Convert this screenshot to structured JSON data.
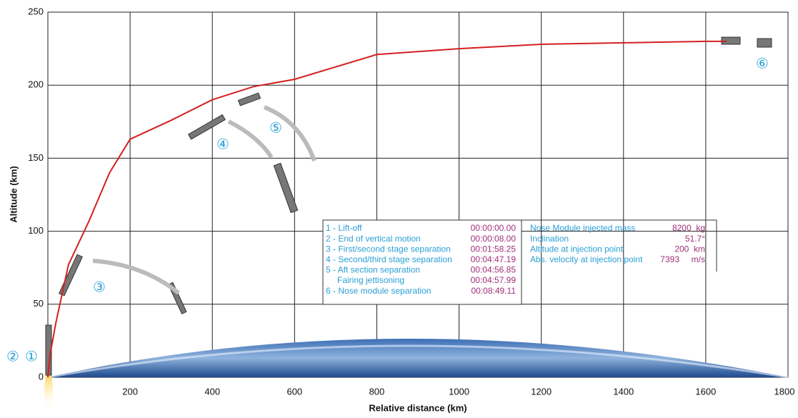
{
  "chart_data": {
    "type": "line",
    "xlabel": "Relative distance (km)",
    "ylabel": "Altitude (km)",
    "x": [
      0,
      5,
      20,
      50,
      100,
      150,
      200,
      300,
      400,
      500,
      600,
      800,
      1000,
      1200,
      1400,
      1600,
      1650
    ],
    "values": [
      0,
      15,
      38,
      77,
      107,
      140,
      163,
      176,
      190,
      199,
      204,
      221,
      225,
      228,
      229,
      230,
      230
    ],
    "color": "#d42020",
    "xlim": [
      0,
      1800
    ],
    "ylim": [
      0,
      250
    ],
    "xticks": [
      200,
      400,
      600,
      800,
      1000,
      1200,
      1400,
      1600,
      1800
    ],
    "yticks": [
      0,
      50,
      100,
      150,
      200,
      250
    ],
    "grid": true,
    "annotations": [
      "②",
      "①",
      "③",
      "④",
      "⑤",
      "⑥"
    ],
    "events": [
      {
        "label": "1 - Lift-off",
        "time": "00:00:00.00"
      },
      {
        "label": "2 - End of vertical motion",
        "time": "00:00:08.00"
      },
      {
        "label": "3 - First/second  stage separation",
        "time": "00:01:58.25"
      },
      {
        "label": "4 - Second/third stage separation",
        "time": "00:04:47.19"
      },
      {
        "label": "5 - Aft section separation",
        "time": "00:04:56.85"
      },
      {
        "label": "Fairing jettisoning",
        "time": "00:04:57.99"
      },
      {
        "label": "6 - Nose  module separation",
        "time": "00:08:49.11"
      }
    ],
    "parameters": [
      {
        "label": "Nose Module injected mass",
        "value": "8200  kg"
      },
      {
        "label": "Inclination",
        "value": "51.7°"
      },
      {
        "label": "Altitude at injection point",
        "value": "200  km"
      },
      {
        "label": "Abs. velocity at injection point",
        "value": "7393     m/s"
      }
    ]
  }
}
